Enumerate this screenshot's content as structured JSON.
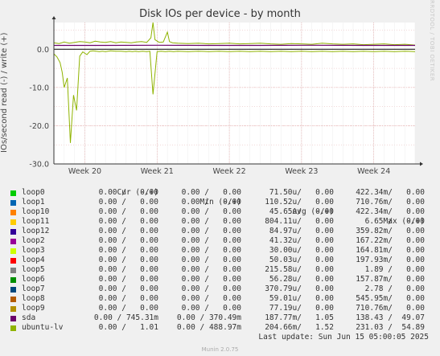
{
  "side_credit": "RRDTOOL / TOBI OETIKER",
  "version": "Munin 2.0.75",
  "last_update": "Last update: Sun Jun 15 05:00:05 2025",
  "legend_headers": {
    "cur": "Cur (-/+)",
    "min": "Min (-/+)",
    "avg": "Avg (-/+)",
    "max": "Max (-/+)"
  },
  "rows": [
    {
      "name": "loop0",
      "color": "#00cc00",
      "cur": "0.00 /   0.00",
      "min": "0.00 /   0.00",
      "avg": "71.50u/   0.00",
      "max": "422.34m/   0.00"
    },
    {
      "name": "loop1",
      "color": "#0066b3",
      "cur": "0.00 /   0.00",
      "min": "0.00 /   0.00",
      "avg": "110.52u/   0.00",
      "max": "710.76m/   0.00"
    },
    {
      "name": "loop10",
      "color": "#ff8000",
      "cur": "0.00 /   0.00",
      "min": "0.00 /   0.00",
      "avg": "45.65u/   0.00",
      "max": "422.34m/   0.00"
    },
    {
      "name": "loop11",
      "color": "#ffcc00",
      "cur": "0.00 /   0.00",
      "min": "0.00 /   0.00",
      "avg": "804.11u/   0.00",
      "max": "6.65 /   0.00"
    },
    {
      "name": "loop12",
      "color": "#330099",
      "cur": "0.00 /   0.00",
      "min": "0.00 /   0.00",
      "avg": "84.97u/   0.00",
      "max": "359.82m/   0.00"
    },
    {
      "name": "loop2",
      "color": "#990099",
      "cur": "0.00 /   0.00",
      "min": "0.00 /   0.00",
      "avg": "41.32u/   0.00",
      "max": "167.22m/   0.00"
    },
    {
      "name": "loop3",
      "color": "#ccff00",
      "cur": "0.00 /   0.00",
      "min": "0.00 /   0.00",
      "avg": "30.00u/   0.00",
      "max": "164.81m/   0.00"
    },
    {
      "name": "loop4",
      "color": "#ff0000",
      "cur": "0.00 /   0.00",
      "min": "0.00 /   0.00",
      "avg": "50.03u/   0.00",
      "max": "197.93m/   0.00"
    },
    {
      "name": "loop5",
      "color": "#808080",
      "cur": "0.00 /   0.00",
      "min": "0.00 /   0.00",
      "avg": "215.58u/   0.00",
      "max": "1.89 /   0.00"
    },
    {
      "name": "loop6",
      "color": "#008f00",
      "cur": "0.00 /   0.00",
      "min": "0.00 /   0.00",
      "avg": "56.28u/   0.00",
      "max": "157.87m/   0.00"
    },
    {
      "name": "loop7",
      "color": "#00487d",
      "cur": "0.00 /   0.00",
      "min": "0.00 /   0.00",
      "avg": "370.79u/   0.00",
      "max": "2.78 /   0.00"
    },
    {
      "name": "loop8",
      "color": "#b35a00",
      "cur": "0.00 /   0.00",
      "min": "0.00 /   0.00",
      "avg": "59.01u/   0.00",
      "max": "545.95m/   0.00"
    },
    {
      "name": "loop9",
      "color": "#b38f00",
      "cur": "0.00 /   0.00",
      "min": "0.00 /   0.00",
      "avg": "77.19u/   0.00",
      "max": "710.76m/   0.00"
    },
    {
      "name": "sda",
      "color": "#6b006b",
      "cur": "0.00 / 745.31m",
      "min": "0.00 / 370.49m",
      "avg": "187.77m/   1.05",
      "max": "138.43 /  49.07"
    },
    {
      "name": "ubuntu-lv",
      "color": "#8fb300",
      "cur": "0.00 /   1.01",
      "min": "0.00 / 488.97m",
      "avg": "204.66m/   1.52",
      "max": "231.03 /  54.89"
    }
  ],
  "chart_data": {
    "type": "line",
    "title": "Disk IOs per device - by month",
    "xlabel": "",
    "ylabel": "IOs/second read (-) / write (+)",
    "ylim": [
      -30,
      7
    ],
    "yticks": [
      {
        "value": 0,
        "label": "0.0"
      },
      {
        "value": -10,
        "label": "-10.0"
      },
      {
        "value": -20,
        "label": "-20.0"
      },
      {
        "value": -30,
        "label": "-30.0"
      }
    ],
    "xlim": [
      0,
      35
    ],
    "xticks": [
      {
        "value": 3,
        "label": "Week 20"
      },
      {
        "value": 10,
        "label": "Week 21"
      },
      {
        "value": 17,
        "label": "Week 22"
      },
      {
        "value": 24,
        "label": "Week 23"
      },
      {
        "value": 31,
        "label": "Week 24"
      }
    ],
    "grid": true,
    "series": [
      {
        "name": "ubuntu-lv",
        "color": "#8fb300",
        "x": [
          0,
          0.3,
          0.6,
          0.8,
          1.0,
          1.3,
          1.6,
          1.9,
          2.2,
          2.5,
          2.8,
          3.2,
          3.5,
          3.8,
          4.1,
          4.4,
          4.7,
          5.0,
          5.5,
          6.0,
          6.5,
          7.0,
          7.3,
          7.6,
          7.9,
          8.2,
          8.6,
          9.0,
          9.3,
          9.6,
          10.0,
          10.4,
          10.8,
          11.2,
          11.6,
          12.0,
          13,
          14,
          15,
          16,
          17,
          18,
          19,
          20,
          21,
          22,
          23,
          24,
          25,
          26,
          27,
          28,
          29,
          30,
          31,
          32,
          33,
          34,
          35
        ],
        "y": [
          -1.2,
          -2.0,
          -3.5,
          -6.0,
          -10.0,
          -7.5,
          -24.5,
          -12.0,
          -16.0,
          -1.8,
          -0.7,
          -1.4,
          -0.5,
          -0.4,
          -0.5,
          -0.6,
          -0.5,
          -0.6,
          -0.4,
          -0.5,
          -0.5,
          -0.6,
          -0.5,
          -0.6,
          -0.5,
          -0.6,
          -0.5,
          -0.6,
          -0.5,
          -11.8,
          -0.6,
          -0.5,
          -0.6,
          -0.5,
          -0.6,
          -0.5,
          -0.6,
          -0.5,
          -0.6,
          -0.5,
          -0.6,
          -0.5,
          -0.6,
          -0.5,
          -0.6,
          -0.5,
          -0.6,
          -0.5,
          -0.6,
          -0.5,
          -0.6,
          -0.5,
          -0.6,
          -0.5,
          -0.6,
          -0.5,
          -0.6,
          -0.5,
          -0.6
        ]
      },
      {
        "name": "ubuntu-lv",
        "color": "#8fb300",
        "x": [
          0,
          0.5,
          1.0,
          1.5,
          2.0,
          2.5,
          3.0,
          3.5,
          4.0,
          4.5,
          5.0,
          5.5,
          6.0,
          6.5,
          7.0,
          7.5,
          8.0,
          8.5,
          9.0,
          9.4,
          9.6,
          9.8,
          10.2,
          10.6,
          11.0,
          11.2,
          11.5,
          12,
          13,
          14,
          15,
          16,
          17,
          18,
          19,
          20,
          21,
          22,
          23,
          24,
          25,
          26,
          27,
          28,
          29,
          30,
          31,
          32,
          33,
          34,
          35
        ],
        "y": [
          1.7,
          1.5,
          1.9,
          1.6,
          1.8,
          2.0,
          1.9,
          1.7,
          2.1,
          1.9,
          1.8,
          2.0,
          1.7,
          1.9,
          1.8,
          1.7,
          1.9,
          2.0,
          1.8,
          3.0,
          7.0,
          2.5,
          1.8,
          1.9,
          4.5,
          2.0,
          1.7,
          1.6,
          1.5,
          1.6,
          1.4,
          1.5,
          1.6,
          1.4,
          1.5,
          1.6,
          1.4,
          1.3,
          1.5,
          1.4,
          1.3,
          1.6,
          1.4,
          1.3,
          1.4,
          1.2,
          1.3,
          1.4,
          1.2,
          1.3,
          1.1
        ]
      },
      {
        "name": "sda",
        "color": "#6b006b",
        "x": [
          0,
          5,
          10,
          15,
          20,
          25,
          30,
          35
        ],
        "y": [
          1.0,
          1.0,
          1.05,
          1.0,
          1.0,
          1.05,
          1.0,
          1.0
        ]
      }
    ]
  }
}
